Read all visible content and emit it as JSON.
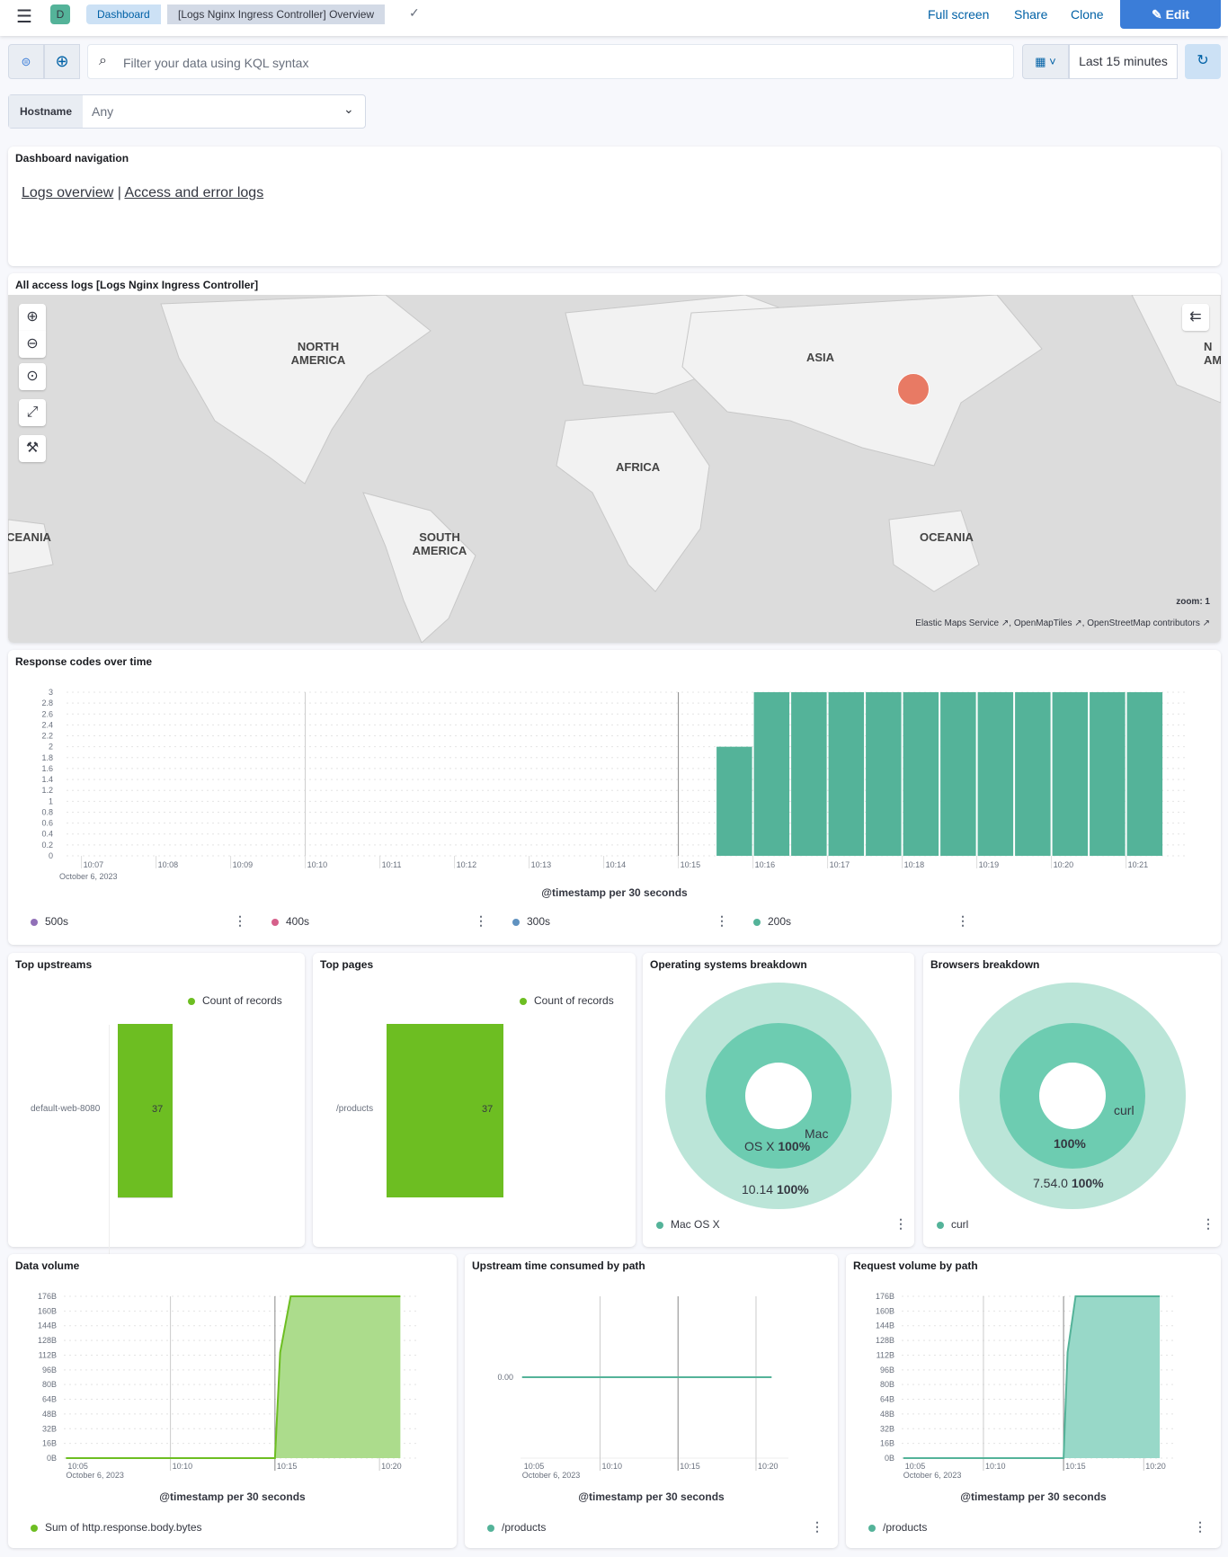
{
  "header": {
    "avatar": "D",
    "breadcrumbs": [
      "Dashboard",
      "[Logs Nginx Ingress Controller] Overview"
    ],
    "full_screen": "Full screen",
    "share": "Share",
    "clone": "Clone",
    "edit": "Edit"
  },
  "query": {
    "placeholder": "Filter your data using KQL syntax",
    "time": "Last 15 minutes"
  },
  "control": {
    "label": "Hostname",
    "value": "Any"
  },
  "nav_panel": {
    "title": "Dashboard navigation",
    "link1": "Logs overview",
    "sep": "|",
    "link2": "Access and error logs"
  },
  "map_panel": {
    "title": "All access logs [Logs Nginx Ingress Controller]",
    "labels": [
      "NORTH AMERICA",
      "ASIA",
      "AFRICA",
      "SOUTH AMERICA",
      "OCEANIA",
      "OCEANIA",
      "N AM"
    ],
    "zoom": "zoom: 1",
    "attribution": [
      "Elastic Maps Service",
      "OpenMapTiles",
      "OpenStreetMap contributors"
    ],
    "point_color": "#e7664c"
  },
  "colors": {
    "accent": "#3b7dd8",
    "teal": "#54b399",
    "green": "#6dbe22",
    "pie_inner": "#6dccb1",
    "pie_outer": "#bbe5d8"
  },
  "chart_data": [
    {
      "id": "response_codes",
      "type": "bar",
      "title": "Response codes over time",
      "xlabel": "@timestamp per 30 seconds",
      "date_label": "October 6, 2023",
      "x_ticks": [
        "10:07",
        "10:08",
        "10:09",
        "10:10",
        "10:11",
        "10:12",
        "10:13",
        "10:14",
        "10:15",
        "10:16",
        "10:17",
        "10:18",
        "10:19",
        "10:20",
        "10:21"
      ],
      "y_ticks": [
        "0",
        "0.2",
        "0.4",
        "0.6",
        "0.8",
        "1",
        "1.2",
        "1.4",
        "1.6",
        "1.8",
        "2",
        "2.2",
        "2.4",
        "2.6",
        "2.8",
        "3"
      ],
      "ylim": [
        0,
        3
      ],
      "series": [
        {
          "name": "500s",
          "color": "#9170b8",
          "values": []
        },
        {
          "name": "400s",
          "color": "#d6608b",
          "values": []
        },
        {
          "name": "300s",
          "color": "#6092c0",
          "values": []
        },
        {
          "name": "200s",
          "color": "#54b399",
          "x": [
            "10:15:30",
            "10:16:00",
            "10:16:30",
            "10:17:00",
            "10:17:30",
            "10:18:00",
            "10:18:30",
            "10:19:00",
            "10:19:30",
            "10:20:00",
            "10:20:30",
            "10:21:00"
          ],
          "values": [
            2,
            3,
            3,
            3,
            3,
            3,
            3,
            3,
            3,
            3,
            3,
            3
          ]
        }
      ]
    },
    {
      "id": "top_upstreams",
      "type": "bar",
      "title": "Top upstreams",
      "legend": "Count of records",
      "categories": [
        "default-web-8080"
      ],
      "values": [
        37
      ],
      "color": "#6dbe22"
    },
    {
      "id": "top_pages",
      "type": "bar",
      "title": "Top pages",
      "legend": "Count of records",
      "categories": [
        "/products"
      ],
      "values": [
        37
      ],
      "color": "#6dbe22"
    },
    {
      "id": "os",
      "type": "pie",
      "title": "Operating systems breakdown",
      "inner": {
        "label_a": "Mac",
        "label_b": "OS X",
        "pct": "100%"
      },
      "outer": {
        "label": "10.14",
        "pct": "100%"
      },
      "legend": "Mac OS X"
    },
    {
      "id": "browsers",
      "type": "pie",
      "title": "Browsers breakdown",
      "inner": {
        "label": "curl",
        "pct": "100%"
      },
      "outer": {
        "label": "7.54.0",
        "pct": "100%"
      },
      "legend": "curl"
    },
    {
      "id": "data_volume",
      "type": "area",
      "title": "Data volume",
      "xlabel": "@timestamp per 30 seconds",
      "date_label": "October 6, 2023",
      "x_ticks": [
        "10:05",
        "10:10",
        "10:15",
        "10:20"
      ],
      "y_ticks": [
        "0B",
        "16B",
        "32B",
        "48B",
        "64B",
        "80B",
        "96B",
        "112B",
        "128B",
        "144B",
        "160B",
        "176B"
      ],
      "ylim": [
        0,
        176
      ],
      "color": "#6dbe22",
      "fill": "#acdc8c",
      "legend": "Sum of http.response.body.bytes",
      "points": [
        [
          "10:05",
          0
        ],
        [
          "10:15",
          0
        ],
        [
          "10:15:15",
          115
        ],
        [
          "10:15:45",
          176
        ],
        [
          "10:21",
          176
        ]
      ]
    },
    {
      "id": "upstream_time",
      "type": "line",
      "title": "Upstream time consumed by path",
      "xlabel": "@timestamp per 30 seconds",
      "date_label": "October 6, 2023",
      "x_ticks": [
        "10:05",
        "10:10",
        "10:15",
        "10:20"
      ],
      "y_ticks": [
        "0.00"
      ],
      "color": "#54b399",
      "legend": "/products",
      "points": [
        [
          "10:05",
          0
        ],
        [
          "10:21",
          0
        ]
      ]
    },
    {
      "id": "request_volume",
      "type": "area",
      "title": "Request volume by path",
      "xlabel": "@timestamp per 30 seconds",
      "date_label": "October 6, 2023",
      "x_ticks": [
        "10:05",
        "10:10",
        "10:15",
        "10:20"
      ],
      "y_ticks": [
        "0B",
        "16B",
        "32B",
        "48B",
        "64B",
        "80B",
        "96B",
        "112B",
        "128B",
        "144B",
        "160B",
        "176B"
      ],
      "ylim": [
        0,
        176
      ],
      "color": "#54b399",
      "fill": "#98d8c8",
      "legend": "/products",
      "points": [
        [
          "10:05",
          0
        ],
        [
          "10:15",
          0
        ],
        [
          "10:15:15",
          115
        ],
        [
          "10:15:45",
          176
        ],
        [
          "10:21",
          176
        ]
      ]
    }
  ]
}
